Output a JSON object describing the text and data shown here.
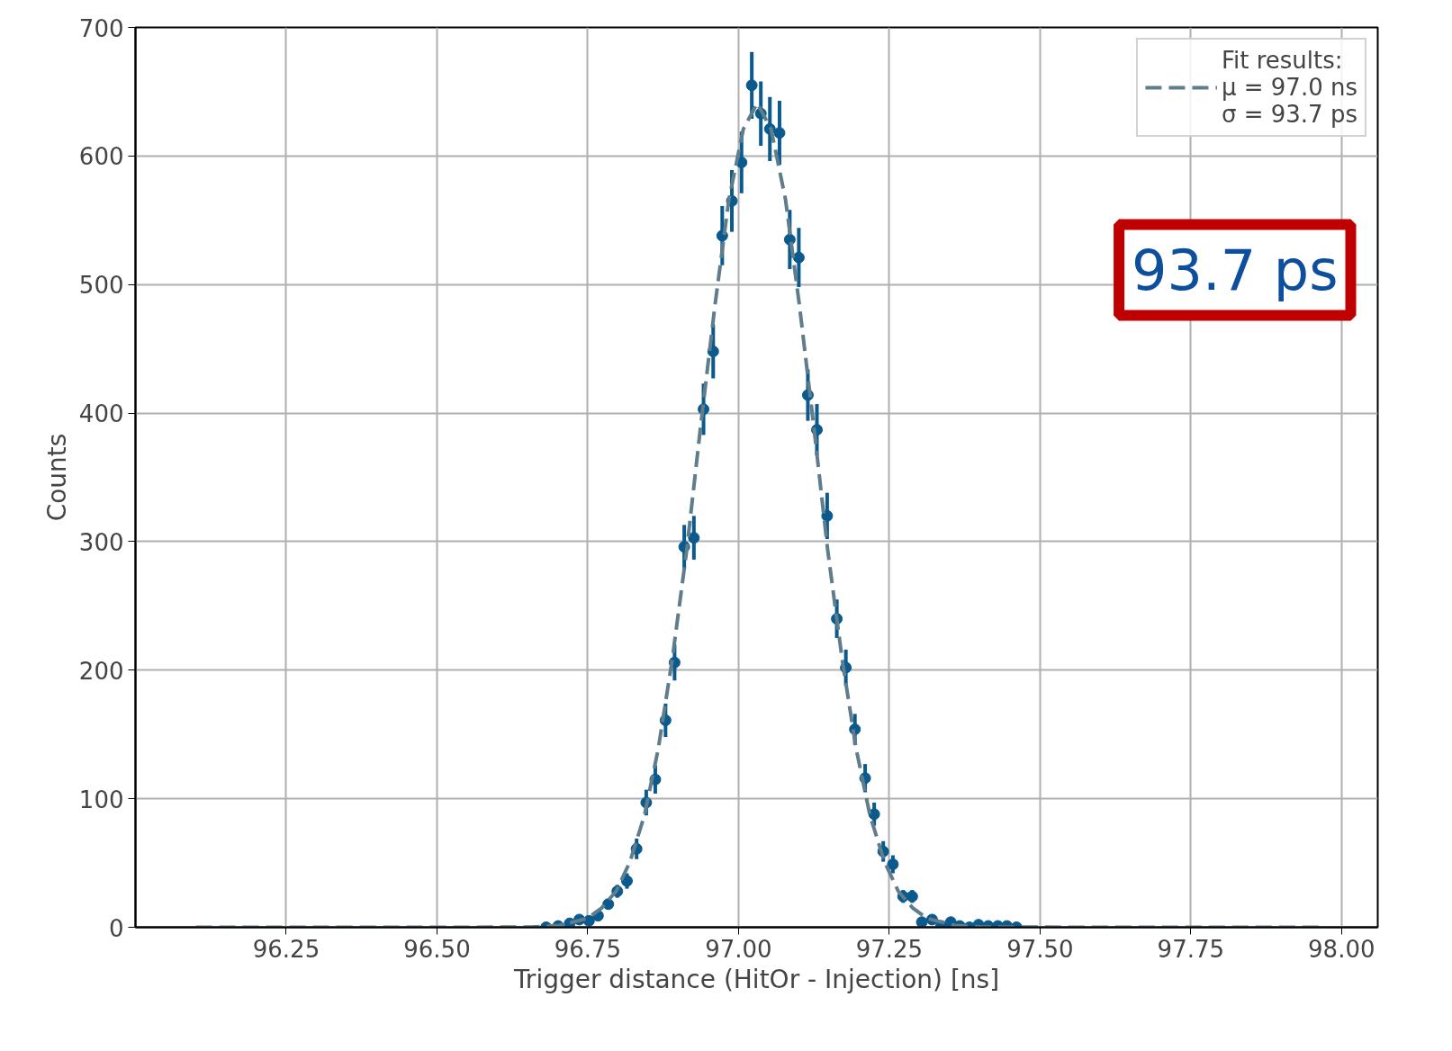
{
  "chart_data": {
    "type": "scatter",
    "xlabel": "Trigger distance (HitOr - Injection) [ns]",
    "ylabel": "Counts",
    "xlim": [
      96.0,
      98.06
    ],
    "ylim": [
      0,
      700
    ],
    "xticks": [
      {
        "value": 96.25,
        "label": "96.25"
      },
      {
        "value": 96.5,
        "label": "96.50"
      },
      {
        "value": 96.75,
        "label": "96.75"
      },
      {
        "value": 97.0,
        "label": "97.00"
      },
      {
        "value": 97.25,
        "label": "97.25"
      },
      {
        "value": 97.5,
        "label": "97.50"
      },
      {
        "value": 97.75,
        "label": "97.75"
      },
      {
        "value": 98.0,
        "label": "98.00"
      }
    ],
    "yticks": [
      0,
      100,
      200,
      300,
      400,
      500,
      600,
      700
    ],
    "grid": true,
    "legend": "top right",
    "annotations": [
      "93.7 ps"
    ],
    "series": [
      {
        "marker": "circle",
        "color": "#0b5a8e",
        "x": [
          96.681,
          96.701,
          96.72,
          96.736,
          96.752,
          96.767,
          96.784,
          96.799,
          96.815,
          96.831,
          96.847,
          96.862,
          96.879,
          96.894,
          96.91,
          96.926,
          96.942,
          96.958,
          96.973,
          96.989,
          97.005,
          97.022,
          97.037,
          97.052,
          97.068,
          97.085,
          97.1,
          97.115,
          97.13,
          97.147,
          97.163,
          97.178,
          97.193,
          97.21,
          97.225,
          97.24,
          97.256,
          97.273,
          97.288,
          97.304,
          97.321,
          97.336,
          97.352,
          97.367,
          97.383,
          97.398,
          97.414,
          97.43,
          97.445,
          97.461
        ],
        "values": [
          0,
          1,
          3,
          6,
          5,
          9,
          18,
          28,
          36,
          61,
          97,
          115,
          161,
          206,
          296,
          303,
          403,
          448,
          538,
          565,
          595,
          655,
          633,
          621,
          618,
          535,
          521,
          414,
          387,
          320,
          240,
          202,
          154,
          116,
          88,
          59,
          49,
          24,
          24,
          4,
          6,
          1,
          4,
          1,
          0,
          2,
          1,
          1,
          1,
          0
        ],
        "errors": [
          0,
          1,
          2,
          2,
          2,
          3,
          4,
          5,
          6,
          8,
          10,
          11,
          13,
          14,
          17,
          17,
          20,
          21,
          23,
          24,
          24,
          26,
          25,
          25,
          25,
          23,
          23,
          20,
          20,
          18,
          15,
          14,
          12,
          11,
          9,
          8,
          7,
          5,
          5,
          2,
          2,
          1,
          2,
          1,
          0,
          1,
          1,
          1,
          1,
          0
        ]
      },
      {
        "type": "line",
        "name": "Fit results:\nμ = 97.0 ns\nσ = 93.7 ps",
        "color": "#607d8b",
        "line_style": "dashed",
        "x": [
          96.1,
          96.5,
          96.656,
          96.703,
          96.75,
          96.773,
          96.797,
          96.82,
          96.844,
          96.867,
          96.89,
          96.914,
          96.937,
          96.961,
          96.984,
          97.008,
          97.031,
          97.054,
          97.078,
          97.101,
          97.125,
          97.148,
          97.172,
          97.195,
          97.218,
          97.242,
          97.265,
          97.289,
          97.312,
          97.359,
          97.406,
          97.6,
          97.97
        ],
        "values": [
          0,
          0,
          0.2,
          1.4,
          7,
          15,
          28,
          51,
          87,
          139,
          208,
          293,
          389,
          484,
          566,
          621,
          641,
          621,
          566,
          484,
          389,
          293,
          208,
          139,
          87,
          51,
          28,
          15,
          7,
          1.4,
          0.2,
          0,
          0
        ]
      }
    ]
  }
}
